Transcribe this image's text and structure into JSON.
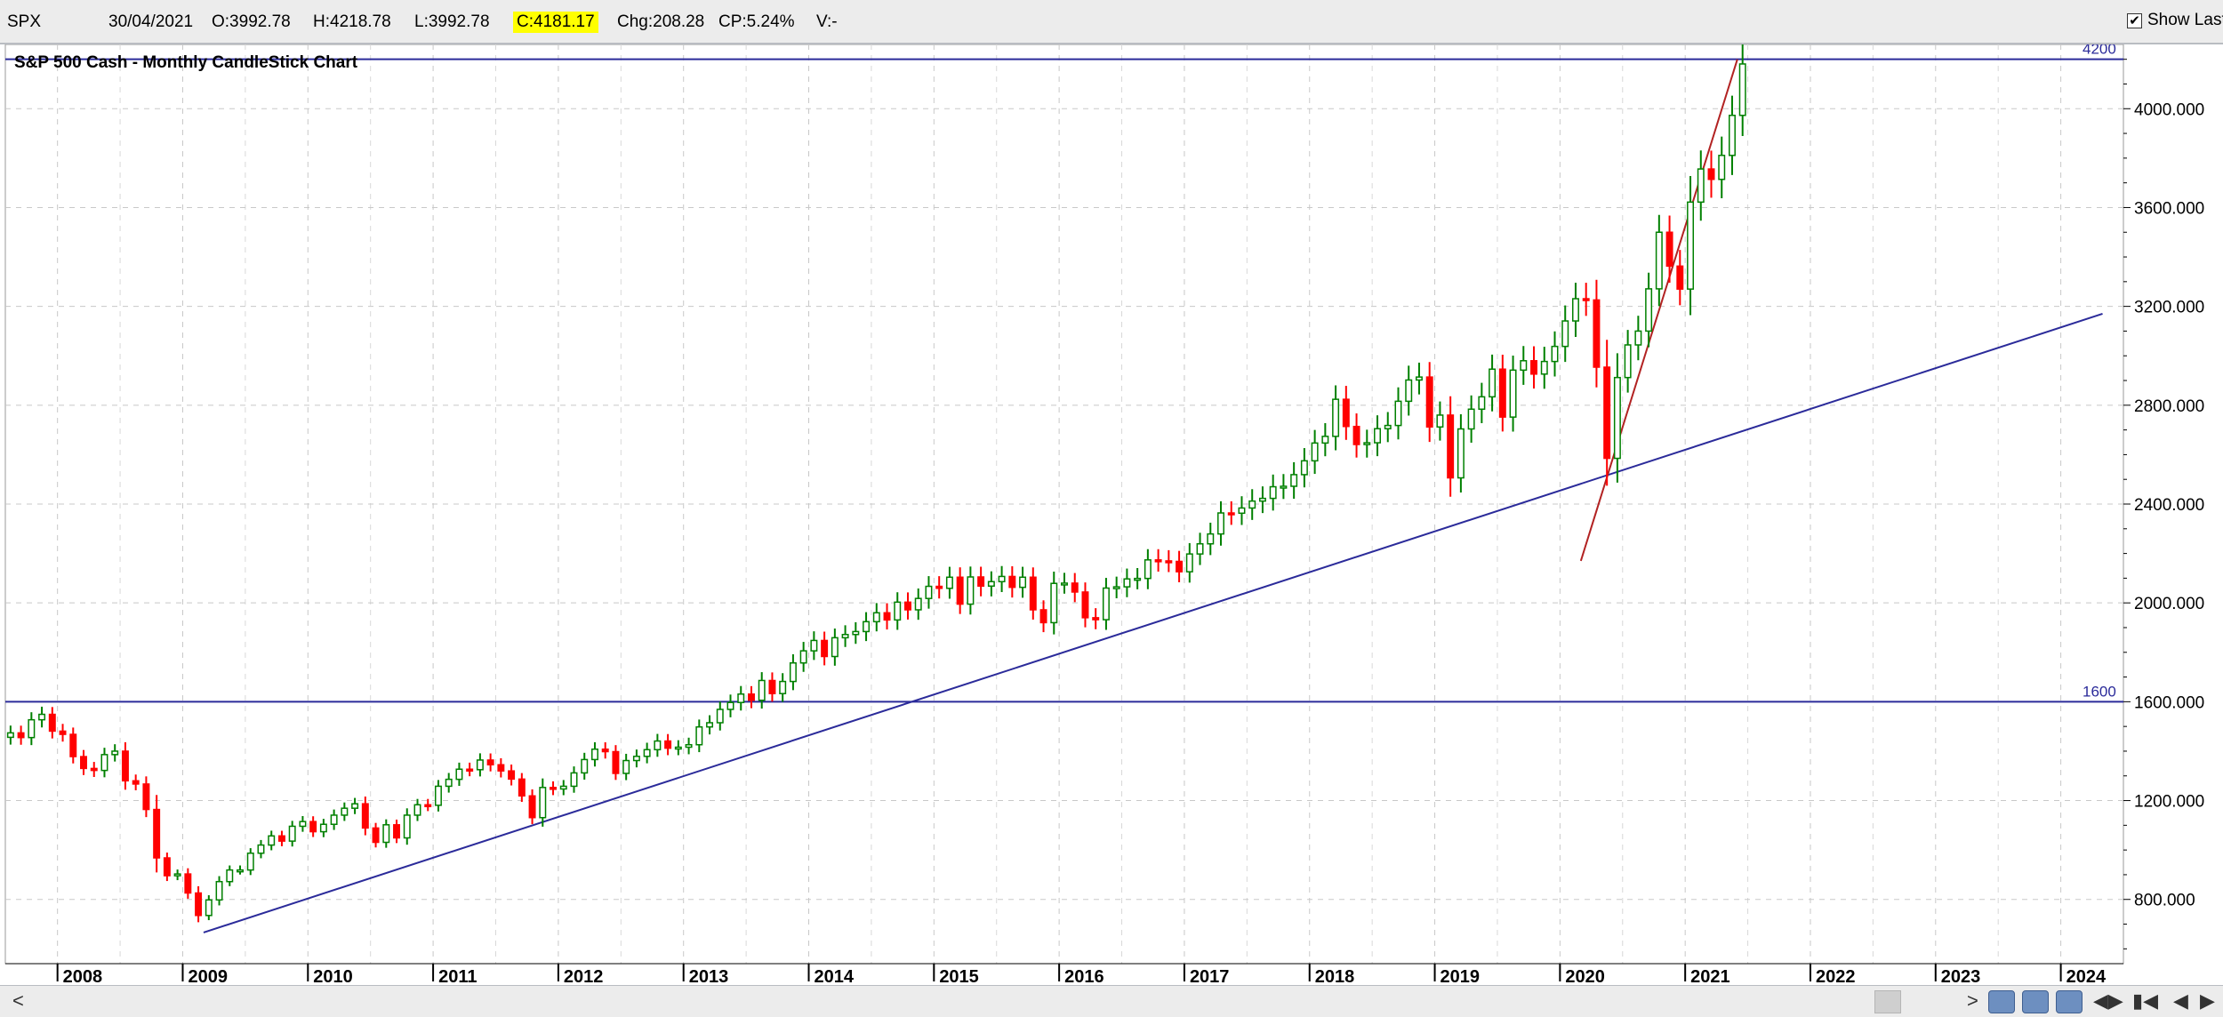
{
  "info_bar": {
    "symbol": "SPX",
    "date": "30/04/2021",
    "open": "O:3992.78",
    "high": "H:4218.78",
    "low": "L:3992.78",
    "close": "C:4181.17",
    "change": "Chg:208.28",
    "change_pct": "CP:5.24%",
    "volume": "V:-",
    "show_last_label": "Show Last",
    "show_last_checked": "✔"
  },
  "nav": {
    "left": "<",
    "right": ">"
  },
  "chart_data": {
    "type": "candlestick",
    "title": "S&P 500 Cash - Monthly CandleStick Chart",
    "interval": "monthly",
    "x_range": [
      "2007-08",
      "2024-07"
    ],
    "ylim": [
      540,
      4260
    ],
    "y_ticks": [
      800,
      1200,
      1600,
      2000,
      2400,
      2800,
      3200,
      3600,
      4000
    ],
    "y_tick_labels": [
      "800.000",
      "1200.000",
      "1600.000",
      "2000.000",
      "2400.000",
      "2800.000",
      "3200.000",
      "3600.000",
      "4000.000"
    ],
    "x_tick_labels": [
      "2008",
      "2009",
      "2010",
      "2011",
      "2012",
      "2013",
      "2014",
      "2015",
      "2016",
      "2017",
      "2018",
      "2019",
      "2020",
      "2021",
      "2022",
      "2023",
      "2024"
    ],
    "grid": true,
    "colors": {
      "up": "#008000",
      "down": "#ff0000",
      "hline": "#2b2b9a",
      "trend_blue": "#2b2b9a",
      "trend_red": "#b22222"
    },
    "horizontal_lines": [
      {
        "value": 4200,
        "label": "4200"
      },
      {
        "value": 1600,
        "label": "1600"
      }
    ],
    "trend_lines": [
      {
        "color": "blue",
        "start": {
          "date": "2009-03",
          "value": 666
        },
        "end": {
          "date": "2024-05",
          "value": 3170
        }
      },
      {
        "color": "red",
        "start": {
          "date": "2020-03",
          "value": 2170
        },
        "end": {
          "date": "2021-06",
          "value": 4200
        }
      }
    ],
    "closes": [
      1474,
      1455,
      1527,
      1549,
      1481,
      1468,
      1378,
      1330,
      1322,
      1386,
      1400,
      1280,
      1267,
      1164,
      968,
      896,
      903,
      826,
      735,
      798,
      872,
      919,
      919,
      987,
      1020,
      1057,
      1036,
      1096,
      1115,
      1074,
      1104,
      1141,
      1169,
      1187,
      1089,
      1031,
      1102,
      1049,
      1141,
      1183,
      1181,
      1258,
      1286,
      1327,
      1325,
      1364,
      1345,
      1320,
      1287,
      1219,
      1131,
      1253,
      1247,
      1258,
      1312,
      1366,
      1408,
      1398,
      1310,
      1362,
      1379,
      1406,
      1441,
      1412,
      1416,
      1426,
      1498,
      1515,
      1569,
      1597,
      1631,
      1606,
      1686,
      1633,
      1682,
      1757,
      1806,
      1848,
      1783,
      1859,
      1872,
      1884,
      1924,
      1960,
      1931,
      2003,
      1972,
      2018,
      2067,
      2059,
      2104,
      1995,
      2105,
      2068,
      2086,
      2107,
      2063,
      2104,
      1972,
      1920,
      2079,
      2080,
      2044,
      1940,
      1932,
      2060,
      2065,
      2097,
      2099,
      2174,
      2170,
      2168,
      2126,
      2198,
      2239,
      2279,
      2364,
      2363,
      2384,
      2412,
      2423,
      2470,
      2472,
      2519,
      2575,
      2647,
      2674,
      2824,
      2714,
      2641,
      2648,
      2705,
      2718,
      2816,
      2902,
      2914,
      2712,
      2760,
      2506,
      2704,
      2784,
      2834,
      2946,
      2752,
      2942,
      2980,
      2926,
      2977,
      3038,
      3141,
      3231,
      3226,
      2954,
      2585,
      2912,
      3044,
      3100,
      3271,
      3500,
      3363,
      3270,
      3622,
      3756,
      3714,
      3811,
      3973,
      4181
    ],
    "highs_lows_note": "wick extremes approximated from the plotted candles"
  }
}
